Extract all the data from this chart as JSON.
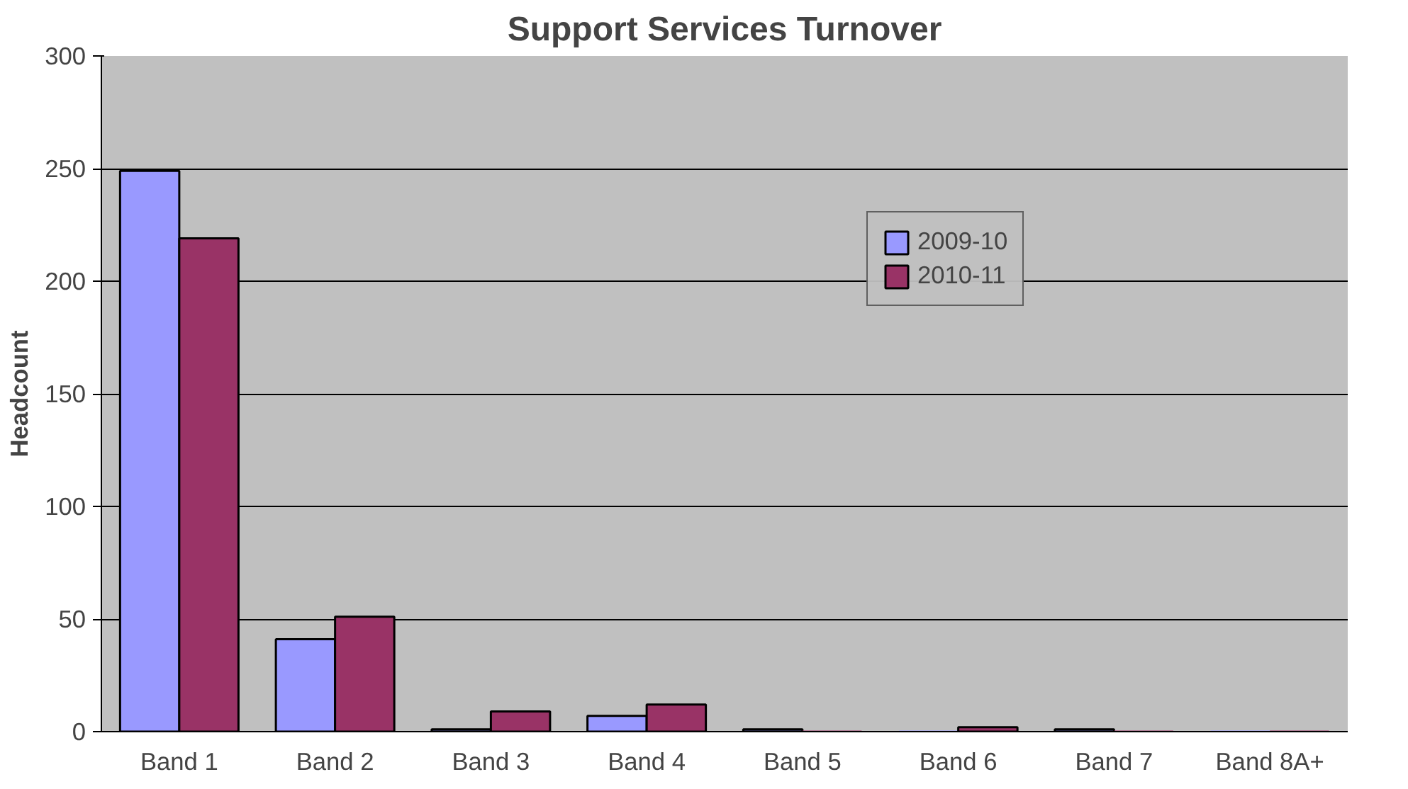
{
  "chart_data": {
    "type": "bar",
    "title": "Support Services Turnover",
    "ylabel": "Headcount",
    "categories": [
      "Band 1",
      "Band 2",
      "Band 3",
      "Band 4",
      "Band 5",
      "Band 6",
      "Band 7",
      "Band 8A+"
    ],
    "series": [
      {
        "name": "2009-10",
        "color": "#9999ff",
        "values": [
          249,
          41,
          1,
          7,
          1,
          0,
          1,
          0
        ]
      },
      {
        "name": "2010-11",
        "color": "#993366",
        "values": [
          219,
          51,
          9,
          12,
          0,
          2,
          0,
          0
        ]
      }
    ],
    "ylim": [
      0,
      300
    ],
    "yticks": [
      0,
      50,
      100,
      150,
      200,
      250,
      300
    ],
    "grid": "y",
    "legend": "top right"
  }
}
